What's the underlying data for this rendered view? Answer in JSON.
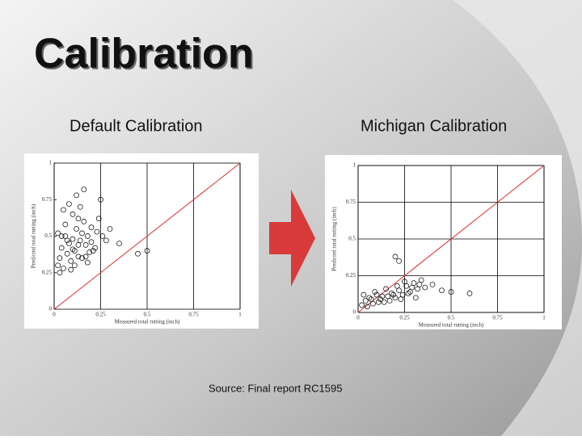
{
  "title": "Calibration",
  "left_label": "Default Calibration",
  "right_label": "Michigan Calibration",
  "source": "Source:  Final report RC1595",
  "chart_data": [
    {
      "type": "scatter",
      "xlabel": "Measured total rutting (inch)",
      "ylabel": "Predicted total rutting (inch)",
      "xlim": [
        0,
        1
      ],
      "ylim": [
        0,
        1
      ],
      "xticks": [
        0,
        0.25,
        0.5,
        0.75,
        1
      ],
      "yticks": [
        0,
        0.25,
        0.5,
        0.75,
        1
      ],
      "grid": "x",
      "identity_line_color": "#e03030",
      "color": "#000000",
      "x": [
        0.02,
        0.03,
        0.04,
        0.05,
        0.06,
        0.07,
        0.08,
        0.09,
        0.1,
        0.11,
        0.12,
        0.13,
        0.14,
        0.15,
        0.16,
        0.17,
        0.18,
        0.19,
        0.2,
        0.22,
        0.24,
        0.26,
        0.28,
        0.3,
        0.05,
        0.08,
        0.1,
        0.12,
        0.14,
        0.16,
        0.03,
        0.06,
        0.09,
        0.11,
        0.13,
        0.15,
        0.18,
        0.21,
        0.25,
        0.35,
        0.45,
        0.04,
        0.07,
        0.1,
        0.13,
        0.17,
        0.2,
        0.23,
        0.02,
        0.5
      ],
      "values": [
        0.3,
        0.35,
        0.42,
        0.28,
        0.5,
        0.38,
        0.45,
        0.33,
        0.48,
        0.4,
        0.55,
        0.36,
        0.47,
        0.52,
        0.6,
        0.44,
        0.5,
        0.39,
        0.56,
        0.42,
        0.62,
        0.5,
        0.47,
        0.55,
        0.68,
        0.72,
        0.65,
        0.78,
        0.7,
        0.82,
        0.25,
        0.58,
        0.27,
        0.3,
        0.62,
        0.35,
        0.32,
        0.4,
        0.75,
        0.45,
        0.38,
        0.5,
        0.47,
        0.41,
        0.44,
        0.36,
        0.46,
        0.53,
        0.52,
        0.4
      ]
    },
    {
      "type": "scatter",
      "xlabel": "Measured total rutting (inch)",
      "ylabel": "Predicted total rutting (inch)",
      "xlim": [
        0,
        1
      ],
      "ylim": [
        0,
        1
      ],
      "xticks": [
        0,
        0.25,
        0.5,
        0.75,
        1
      ],
      "yticks": [
        0,
        0.25,
        0.5,
        0.75,
        1
      ],
      "grid": "both",
      "identity_line_color": "#e03030",
      "color": "#000000",
      "x": [
        0.02,
        0.04,
        0.06,
        0.08,
        0.1,
        0.12,
        0.14,
        0.16,
        0.18,
        0.2,
        0.22,
        0.24,
        0.26,
        0.28,
        0.3,
        0.32,
        0.34,
        0.36,
        0.4,
        0.45,
        0.03,
        0.05,
        0.07,
        0.09,
        0.11,
        0.13,
        0.15,
        0.17,
        0.19,
        0.21,
        0.23,
        0.25,
        0.27,
        0.29,
        0.31,
        0.33,
        0.2,
        0.22,
        0.5,
        0.6
      ],
      "values": [
        0.05,
        0.08,
        0.1,
        0.06,
        0.12,
        0.09,
        0.07,
        0.11,
        0.13,
        0.1,
        0.15,
        0.12,
        0.18,
        0.14,
        0.2,
        0.16,
        0.22,
        0.17,
        0.19,
        0.15,
        0.12,
        0.04,
        0.09,
        0.14,
        0.07,
        0.11,
        0.16,
        0.08,
        0.12,
        0.18,
        0.09,
        0.21,
        0.13,
        0.17,
        0.1,
        0.19,
        0.38,
        0.35,
        0.14,
        0.13
      ]
    }
  ]
}
